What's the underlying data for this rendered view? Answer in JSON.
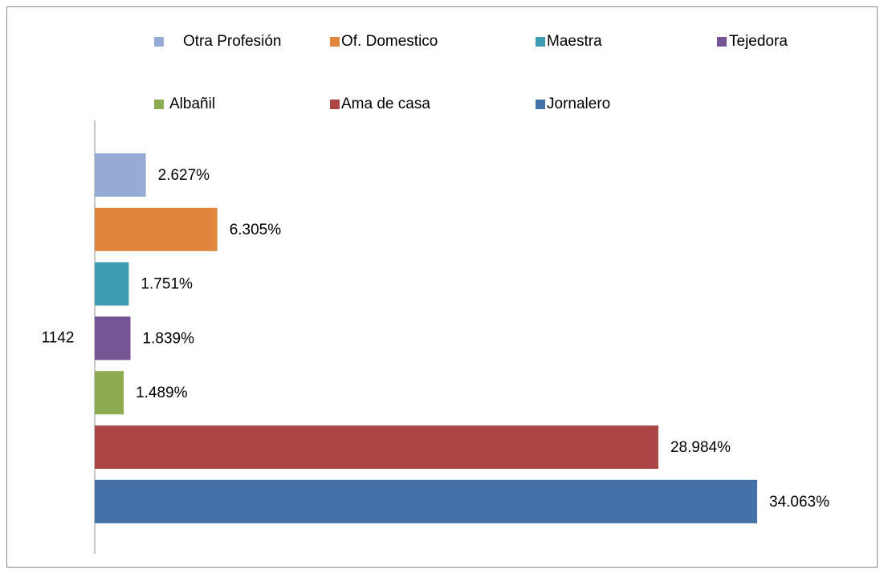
{
  "chart_data": {
    "type": "bar",
    "orientation": "horizontal",
    "categories": [
      "1142"
    ],
    "series": [
      {
        "name": "Otra Profesión",
        "color": "#95abd4",
        "values": [
          2.627
        ],
        "value_labels": [
          "2.627%"
        ]
      },
      {
        "name": "Of. Domestico",
        "color": "#e0863e",
        "values": [
          6.305
        ],
        "value_labels": [
          "6.305%"
        ]
      },
      {
        "name": "Maestra",
        "color": "#3f9db3",
        "values": [
          1.751
        ],
        "value_labels": [
          "1.751%"
        ]
      },
      {
        "name": "Tejedora",
        "color": "#755595",
        "values": [
          1.839
        ],
        "value_labels": [
          "1.839%"
        ]
      },
      {
        "name": "Albañil",
        "color": "#8fab52",
        "values": [
          1.489
        ],
        "value_labels": [
          "1.489%"
        ]
      },
      {
        "name": "Ama de casa",
        "color": "#aa4646",
        "values": [
          28.984
        ],
        "value_labels": [
          "28.984%"
        ]
      },
      {
        "name": "Jornalero",
        "color": "#4472a8",
        "values": [
          34.063
        ],
        "value_labels": [
          "34.063%"
        ]
      }
    ],
    "legend": "top"
  }
}
